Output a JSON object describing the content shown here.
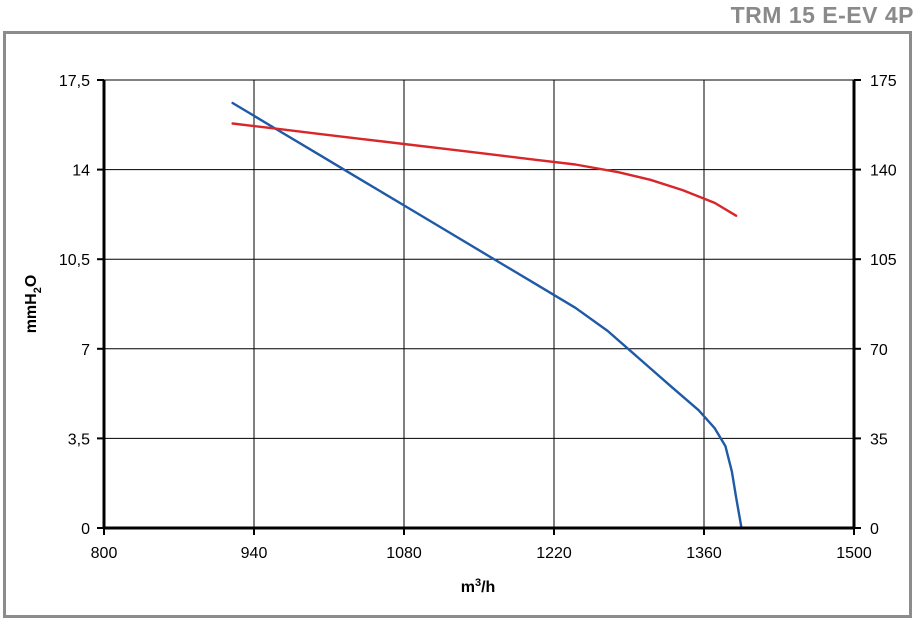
{
  "header": {
    "title": "TRM 15 E-EV 4P"
  },
  "chart_data": {
    "type": "line",
    "xlabel": {
      "base": "m",
      "sup": "3",
      "rest": "/h"
    },
    "ylabel": {
      "base": "mmH",
      "sub": "2",
      "rest": "O"
    },
    "xlim": [
      800,
      1500
    ],
    "ylim": [
      0,
      17.5
    ],
    "y2lim": [
      0,
      175
    ],
    "x_ticks": [
      "800",
      "940",
      "1080",
      "1220",
      "1360",
      "1500"
    ],
    "y_ticks": [
      "0",
      "3,5",
      "7",
      "10,5",
      "14",
      "17,5"
    ],
    "y2_ticks": [
      "0",
      "35",
      "70",
      "105",
      "140",
      "175"
    ],
    "grid": true,
    "series": [
      {
        "color": "#1f5aa6",
        "axis": "left",
        "x": [
          920,
          960,
          1000,
          1040,
          1080,
          1120,
          1160,
          1200,
          1240,
          1270,
          1300,
          1330,
          1355,
          1370,
          1380,
          1386,
          1390,
          1395
        ],
        "y": [
          16.6,
          15.6,
          14.6,
          13.6,
          12.6,
          11.6,
          10.6,
          9.6,
          8.6,
          7.7,
          6.6,
          5.5,
          4.6,
          3.9,
          3.2,
          2.2,
          1.2,
          0.0
        ]
      },
      {
        "color": "#d9262b",
        "axis": "left",
        "x": [
          920,
          960,
          1000,
          1040,
          1080,
          1120,
          1160,
          1200,
          1240,
          1280,
          1310,
          1340,
          1370,
          1390
        ],
        "y": [
          15.8,
          15.6,
          15.4,
          15.2,
          15.0,
          14.8,
          14.6,
          14.4,
          14.2,
          13.9,
          13.6,
          13.2,
          12.7,
          12.2
        ]
      }
    ]
  }
}
